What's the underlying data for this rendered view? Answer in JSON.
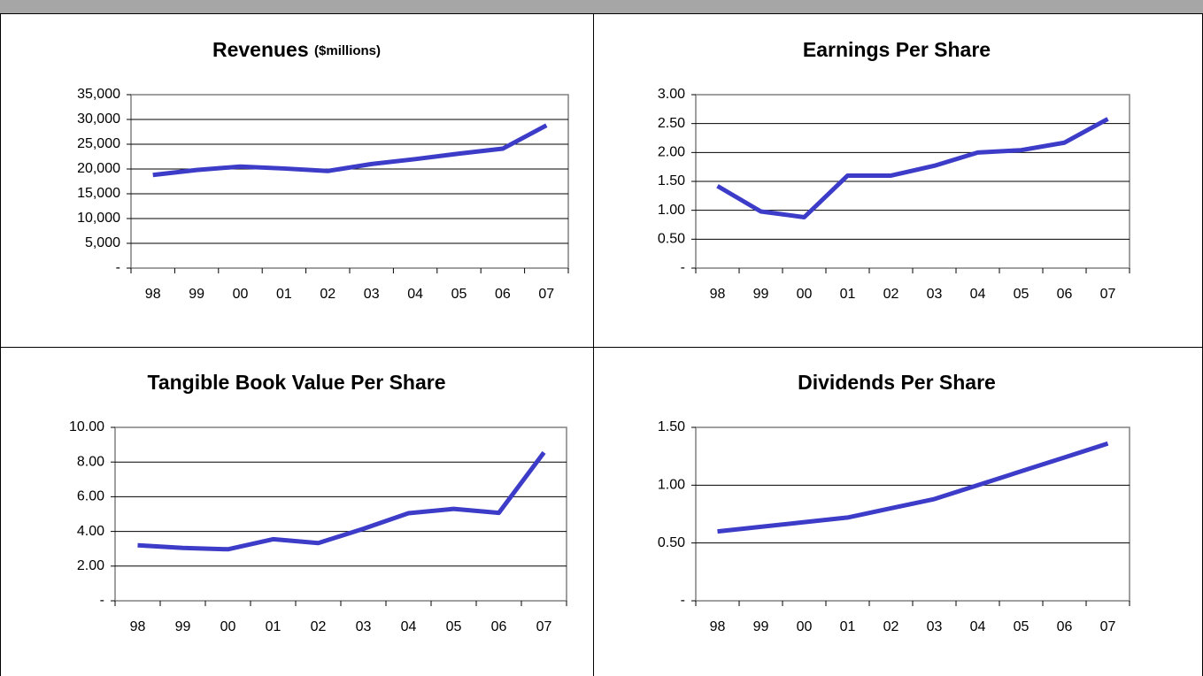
{
  "chart_data": [
    {
      "type": "line",
      "title": "Revenues",
      "subtitle": "($millions)",
      "categories": [
        "98",
        "99",
        "00",
        "01",
        "02",
        "03",
        "04",
        "05",
        "06",
        "07"
      ],
      "series": [
        {
          "color": "#3c3cc8",
          "values": [
            18800,
            19800,
            20500,
            20100,
            19600,
            21000,
            22000,
            23100,
            24100,
            28800
          ]
        }
      ],
      "ylim": [
        0,
        35000
      ],
      "yticks": [
        {
          "value": 0,
          "label": "-"
        },
        {
          "value": 5000,
          "label": "5,000"
        },
        {
          "value": 10000,
          "label": "10,000"
        },
        {
          "value": 15000,
          "label": "15,000"
        },
        {
          "value": 20000,
          "label": "20,000"
        },
        {
          "value": 25000,
          "label": "25,000"
        },
        {
          "value": 30000,
          "label": "30,000"
        },
        {
          "value": 35000,
          "label": "35,000"
        }
      ],
      "grid": true
    },
    {
      "type": "line",
      "title": "Earnings Per Share",
      "categories": [
        "98",
        "99",
        "00",
        "01",
        "02",
        "03",
        "04",
        "05",
        "06",
        "07"
      ],
      "series": [
        {
          "color": "#3c3cc8",
          "values": [
            1.42,
            0.98,
            0.88,
            1.6,
            1.6,
            1.77,
            2.0,
            2.04,
            2.17,
            2.58
          ]
        }
      ],
      "ylim": [
        0,
        3
      ],
      "yticks": [
        {
          "value": 0,
          "label": "-"
        },
        {
          "value": 0.5,
          "label": "0.50"
        },
        {
          "value": 1,
          "label": "1.00"
        },
        {
          "value": 1.5,
          "label": "1.50"
        },
        {
          "value": 2,
          "label": "2.00"
        },
        {
          "value": 2.5,
          "label": "2.50"
        },
        {
          "value": 3,
          "label": "3.00"
        }
      ],
      "grid": true
    },
    {
      "type": "line",
      "title": "Tangible Book Value Per Share",
      "categories": [
        "98",
        "99",
        "00",
        "01",
        "02",
        "03",
        "04",
        "05",
        "06",
        "07"
      ],
      "series": [
        {
          "color": "#3c3cc8",
          "values": [
            3.2,
            3.05,
            2.97,
            3.55,
            3.33,
            4.15,
            5.05,
            5.3,
            5.07,
            8.55
          ]
        }
      ],
      "ylim": [
        0,
        10
      ],
      "yticks": [
        {
          "value": 0,
          "label": "-"
        },
        {
          "value": 2,
          "label": "2.00"
        },
        {
          "value": 4,
          "label": "4.00"
        },
        {
          "value": 6,
          "label": "6.00"
        },
        {
          "value": 8,
          "label": "8.00"
        },
        {
          "value": 10,
          "label": "10.00"
        }
      ],
      "grid": true
    },
    {
      "type": "line",
      "title": "Dividends Per Share",
      "categories": [
        "98",
        "99",
        "00",
        "01",
        "02",
        "03",
        "04",
        "05",
        "06",
        "07"
      ],
      "series": [
        {
          "color": "#3c3cc8",
          "values": [
            0.6,
            0.64,
            0.68,
            0.72,
            0.8,
            0.88,
            1.0,
            1.12,
            1.24,
            1.36
          ]
        }
      ],
      "ylim": [
        0,
        1.5
      ],
      "yticks": [
        {
          "value": 0,
          "label": "-"
        },
        {
          "value": 0.5,
          "label": "0.50"
        },
        {
          "value": 1,
          "label": "1.00"
        },
        {
          "value": 1.5,
          "label": "1.50"
        }
      ],
      "grid": true
    }
  ]
}
